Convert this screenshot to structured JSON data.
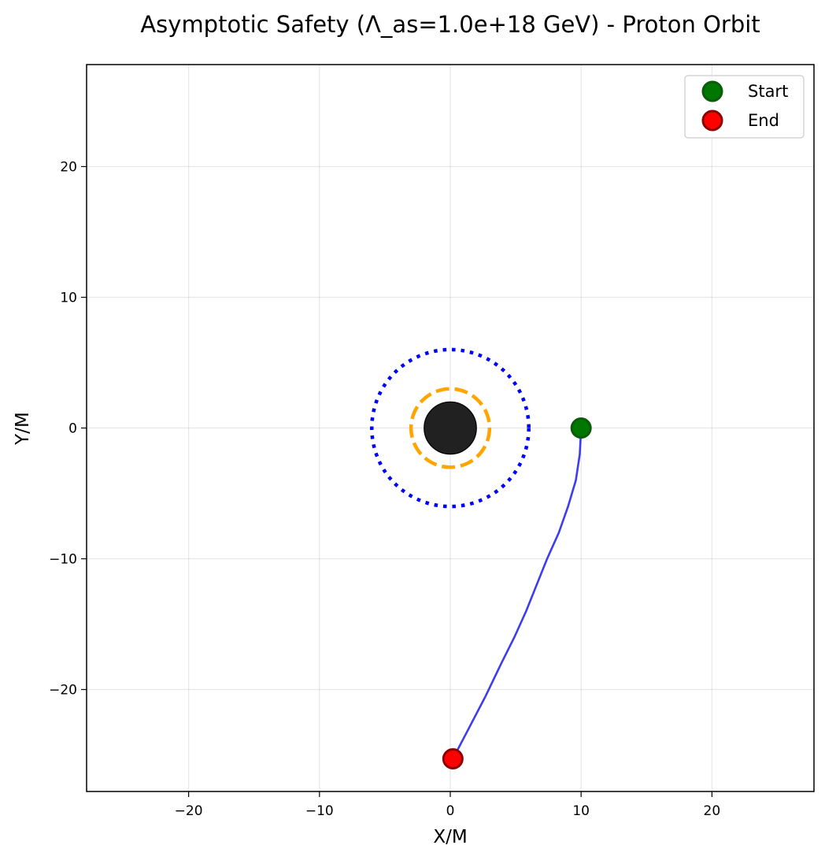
{
  "chart_data": {
    "type": "line",
    "title": "Asymptotic Safety (Λ_as=1.0e+18 GeV) - Proton Orbit",
    "xlabel": "X/M",
    "ylabel": "Y/M",
    "xlim": [
      -27.8,
      27.8
    ],
    "ylim": [
      -27.8,
      27.8
    ],
    "xticks": [
      -20,
      -10,
      0,
      10,
      20
    ],
    "yticks": [
      -20,
      -10,
      0,
      10,
      20
    ],
    "grid": true,
    "legend_position": "upper right",
    "series": [
      {
        "name": "",
        "color": "#3333ee",
        "x": [
          10.0,
          9.9,
          9.6,
          9.0,
          8.3,
          7.4,
          6.6,
          5.8,
          4.9,
          3.9,
          2.7,
          1.4,
          0.2
        ],
        "y": [
          0.0,
          -2.0,
          -4.0,
          -6.0,
          -8.0,
          -10.0,
          -12.0,
          -14.0,
          -16.0,
          -18.0,
          -20.5,
          -23.0,
          -25.3
        ]
      }
    ],
    "markers": [
      {
        "name": "Start",
        "x": 10.0,
        "y": 0.0,
        "color": "#007700",
        "edge": "#0a5c0a"
      },
      {
        "name": "End",
        "x": 0.2,
        "y": -25.3,
        "color": "#ff0000",
        "edge": "#8b0000"
      }
    ],
    "circles": [
      {
        "name": "black-hole",
        "radius": 2.0,
        "fill": "#1a1a1a",
        "style": "solid"
      },
      {
        "name": "photon-sphere",
        "radius": 3.0,
        "color": "#ffa500",
        "style": "dashed"
      },
      {
        "name": "isco",
        "radius": 6.0,
        "color": "#0000ff",
        "style": "dotted"
      }
    ]
  }
}
